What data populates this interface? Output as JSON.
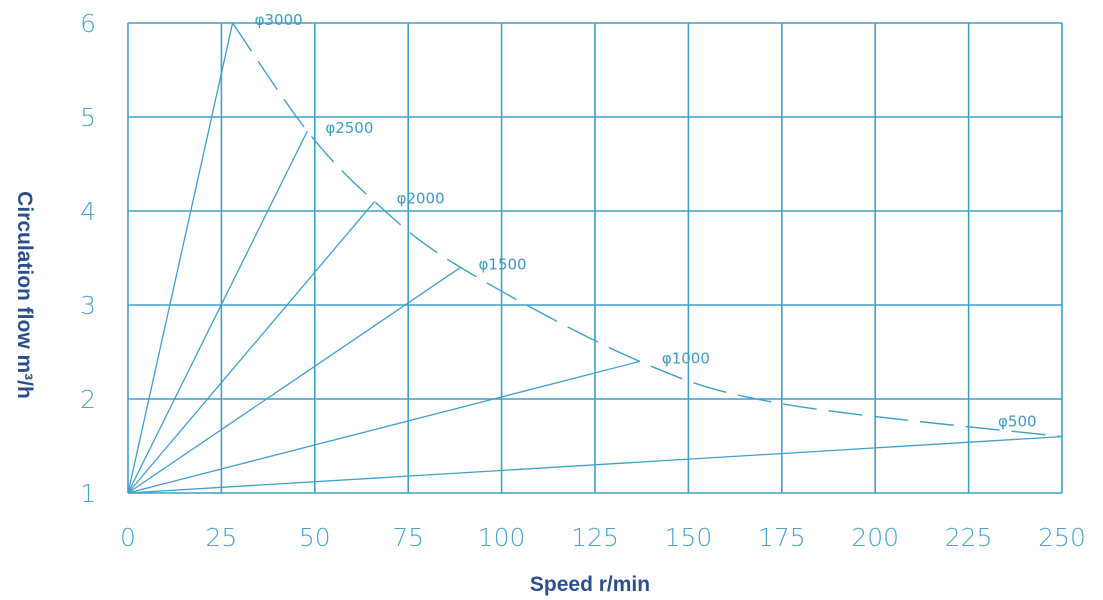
{
  "chart_data": {
    "type": "line",
    "xlabel": "Speed r/min",
    "ylabel": "Circulation flow m³/h",
    "xlim": [
      0,
      250
    ],
    "ylim": [
      1,
      6
    ],
    "x_ticks": [
      "0",
      "25",
      "50",
      "75",
      "100",
      "125",
      "150",
      "175",
      "200",
      "225",
      "250"
    ],
    "y_ticks": [
      "1",
      "2",
      "3",
      "4",
      "5",
      "6"
    ],
    "grid": true,
    "series": [
      {
        "name": "φ3000",
        "points": [
          [
            0,
            1
          ],
          [
            28,
            6.0
          ]
        ]
      },
      {
        "name": "φ2500",
        "points": [
          [
            0,
            1
          ],
          [
            48,
            4.85
          ]
        ]
      },
      {
        "name": "φ2000",
        "points": [
          [
            0,
            1
          ],
          [
            66,
            4.1
          ]
        ]
      },
      {
        "name": "φ1500",
        "points": [
          [
            0,
            1
          ],
          [
            89,
            3.4
          ]
        ]
      },
      {
        "name": "φ1000",
        "points": [
          [
            0,
            1
          ],
          [
            137,
            2.4
          ]
        ]
      },
      {
        "name": "φ500",
        "points": [
          [
            0,
            1
          ],
          [
            250,
            1.6
          ]
        ]
      }
    ],
    "envelope": [
      [
        28,
        6.0
      ],
      [
        48,
        4.85
      ],
      [
        66,
        4.1
      ],
      [
        89,
        3.4
      ],
      [
        137,
        2.4
      ],
      [
        175,
        1.95
      ],
      [
        250,
        1.6
      ]
    ]
  }
}
